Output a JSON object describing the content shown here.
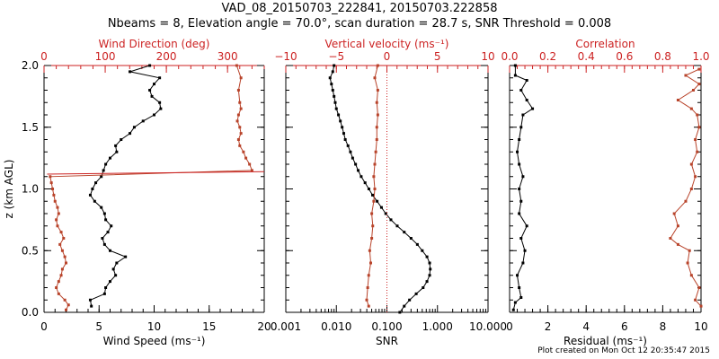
{
  "title_line1": "VAD_08_20150703_222841, 20150703.222858",
  "title_line2": "Nbeams = 8, Elevation angle = 70.0°, scan duration = 28.7 s, SNR Threshold = 0.008",
  "footer": "Plot created on Mon Oct 12 20:35:47 2015",
  "colors": {
    "black": "#000000",
    "red": "#cc2222",
    "brown": "#b8432a"
  },
  "chart_data": [
    {
      "panel": "left",
      "type": "line",
      "ylabel": "z (km AGL)",
      "ylim": [
        0,
        2.0
      ],
      "yticks": [
        0.0,
        0.5,
        1.0,
        1.5,
        2.0
      ],
      "ytick_labels": [
        "0.0",
        "0.5",
        "1.0",
        "1.5",
        "2.0"
      ],
      "bottom_axis": {
        "label": "Wind Speed (ms⁻¹)",
        "lim": [
          0,
          20
        ],
        "ticks": [
          0,
          5,
          10,
          15,
          20
        ],
        "tick_labels": [
          "0",
          "5",
          "10",
          "15",
          "20"
        ]
      },
      "top_axis": {
        "label": "Wind Direction (deg)",
        "lim": [
          0,
          360
        ],
        "ticks": [
          0,
          100,
          200,
          300
        ],
        "tick_labels": [
          "0",
          "100",
          "200",
          "300"
        ]
      },
      "series": [
        {
          "name": "Wind Speed",
          "color": "#000000",
          "axis": "bottom",
          "points": [
            [
              4.3,
              0.05
            ],
            [
              4.2,
              0.1
            ],
            [
              5.5,
              0.15
            ],
            [
              5.6,
              0.2
            ],
            [
              6,
              0.25
            ],
            [
              6.5,
              0.3
            ],
            [
              6.3,
              0.35
            ],
            [
              6.6,
              0.4
            ],
            [
              7.4,
              0.45
            ],
            [
              6,
              0.5
            ],
            [
              5.5,
              0.55
            ],
            [
              5.3,
              0.6
            ],
            [
              5.8,
              0.65
            ],
            [
              6.1,
              0.7
            ],
            [
              5.6,
              0.75
            ],
            [
              5.5,
              0.8
            ],
            [
              5.2,
              0.85
            ],
            [
              4.6,
              0.9
            ],
            [
              4.2,
              0.95
            ],
            [
              4.4,
              1.0
            ],
            [
              4.7,
              1.05
            ],
            [
              5.2,
              1.1
            ],
            [
              5.4,
              1.15
            ],
            [
              5.6,
              1.2
            ],
            [
              6,
              1.25
            ],
            [
              6.6,
              1.3
            ],
            [
              6.5,
              1.35
            ],
            [
              7,
              1.4
            ],
            [
              7.8,
              1.45
            ],
            [
              8.2,
              1.5
            ],
            [
              9,
              1.55
            ],
            [
              10,
              1.6
            ],
            [
              10.6,
              1.65
            ],
            [
              10.5,
              1.7
            ],
            [
              9.8,
              1.75
            ],
            [
              9.6,
              1.8
            ],
            [
              10,
              1.85
            ],
            [
              10.5,
              1.9
            ],
            [
              7.8,
              1.95
            ],
            [
              9.6,
              2.0
            ]
          ]
        },
        {
          "name": "Wind Direction",
          "color": "#b8432a",
          "axis": "top",
          "points": [
            [
              36,
              0.02
            ],
            [
              40,
              0.06
            ],
            [
              34,
              0.1
            ],
            [
              24,
              0.15
            ],
            [
              20,
              0.2
            ],
            [
              24,
              0.25
            ],
            [
              28,
              0.3
            ],
            [
              30,
              0.35
            ],
            [
              36,
              0.4
            ],
            [
              34,
              0.45
            ],
            [
              30,
              0.5
            ],
            [
              26,
              0.55
            ],
            [
              32,
              0.6
            ],
            [
              28,
              0.65
            ],
            [
              22,
              0.7
            ],
            [
              20,
              0.75
            ],
            [
              24,
              0.8
            ],
            [
              22,
              0.85
            ],
            [
              18,
              0.9
            ],
            [
              16,
              0.95
            ],
            [
              14,
              1.0
            ],
            [
              12,
              1.05
            ],
            [
              10,
              1.1
            ],
            [
              340,
              1.15
            ],
            [
              336,
              1.2
            ],
            [
              330,
              1.25
            ],
            [
              326,
              1.3
            ],
            [
              320,
              1.35
            ],
            [
              318,
              1.4
            ],
            [
              322,
              1.45
            ],
            [
              320,
              1.5
            ],
            [
              316,
              1.55
            ],
            [
              318,
              1.6
            ],
            [
              322,
              1.65
            ],
            [
              320,
              1.7
            ],
            [
              318,
              1.8
            ],
            [
              322,
              1.9
            ],
            [
              315,
              2.0
            ]
          ]
        },
        {
          "name": "Direction wrap line",
          "color": "#cc2222",
          "axis": "top",
          "points": [
            [
              5,
              1.12
            ],
            [
              360,
              1.14
            ]
          ]
        }
      ]
    },
    {
      "panel": "middle",
      "type": "line",
      "ylim": [
        0,
        2.0
      ],
      "bottom_axis": {
        "label": "SNR",
        "scale": "log",
        "lim": [
          0.001,
          10
        ],
        "ticks": [
          0.001,
          0.01,
          0.1,
          1,
          10
        ],
        "tick_labels": [
          "0.001",
          "0.010",
          "0.100",
          "1.000",
          "10.000"
        ]
      },
      "top_axis": {
        "label": "Vertical velocity (ms⁻¹)",
        "lim": [
          -10,
          10
        ],
        "ticks": [
          -10,
          -5,
          0,
          5,
          10
        ],
        "tick_labels": [
          "−10",
          "−5",
          "0",
          "5",
          "10"
        ]
      },
      "series": [
        {
          "name": "SNR",
          "color": "#000000",
          "axis": "bottom",
          "points": [
            [
              0.18,
              0.0
            ],
            [
              0.22,
              0.05
            ],
            [
              0.28,
              0.1
            ],
            [
              0.38,
              0.15
            ],
            [
              0.52,
              0.2
            ],
            [
              0.62,
              0.25
            ],
            [
              0.7,
              0.3
            ],
            [
              0.72,
              0.35
            ],
            [
              0.7,
              0.4
            ],
            [
              0.62,
              0.45
            ],
            [
              0.5,
              0.5
            ],
            [
              0.4,
              0.55
            ],
            [
              0.3,
              0.6
            ],
            [
              0.22,
              0.65
            ],
            [
              0.16,
              0.7
            ],
            [
              0.12,
              0.75
            ],
            [
              0.095,
              0.8
            ],
            [
              0.078,
              0.85
            ],
            [
              0.064,
              0.9
            ],
            [
              0.052,
              0.95
            ],
            [
              0.044,
              1.0
            ],
            [
              0.037,
              1.05
            ],
            [
              0.031,
              1.1
            ],
            [
              0.027,
              1.15
            ],
            [
              0.024,
              1.2
            ],
            [
              0.021,
              1.25
            ],
            [
              0.019,
              1.3
            ],
            [
              0.017,
              1.35
            ],
            [
              0.015,
              1.4
            ],
            [
              0.014,
              1.45
            ],
            [
              0.013,
              1.5
            ],
            [
              0.012,
              1.55
            ],
            [
              0.011,
              1.6
            ],
            [
              0.01,
              1.65
            ],
            [
              0.0095,
              1.7
            ],
            [
              0.009,
              1.75
            ],
            [
              0.0085,
              1.8
            ],
            [
              0.008,
              1.85
            ],
            [
              0.0075,
              1.9
            ],
            [
              0.0085,
              1.95
            ],
            [
              0.009,
              2.0
            ]
          ]
        },
        {
          "name": "Vertical velocity",
          "color": "#b8432a",
          "axis": "top",
          "points": [
            [
              -1.8,
              0.05
            ],
            [
              -2,
              0.1
            ],
            [
              -1.9,
              0.2
            ],
            [
              -1.8,
              0.3
            ],
            [
              -1.6,
              0.4
            ],
            [
              -1.7,
              0.5
            ],
            [
              -1.5,
              0.6
            ],
            [
              -1.4,
              0.7
            ],
            [
              -1.5,
              0.8
            ],
            [
              -1.3,
              0.9
            ],
            [
              -1.2,
              1.0
            ],
            [
              -1.3,
              1.1
            ],
            [
              -1.2,
              1.2
            ],
            [
              -1.1,
              1.3
            ],
            [
              -1.0,
              1.4
            ],
            [
              -1.0,
              1.5
            ],
            [
              -0.9,
              1.6
            ],
            [
              -1.0,
              1.7
            ],
            [
              -0.9,
              1.8
            ],
            [
              -1.2,
              1.9
            ],
            [
              -0.9,
              2.0
            ]
          ]
        },
        {
          "name": "Zero velocity",
          "color": "#cc2222",
          "axis": "top",
          "style": "dotted",
          "points": [
            [
              0,
              0
            ],
            [
              0,
              2.0
            ]
          ]
        }
      ]
    },
    {
      "panel": "right",
      "type": "line",
      "ylim": [
        0,
        2.0
      ],
      "bottom_axis": {
        "label": "Residual (ms⁻¹)",
        "lim": [
          0,
          10
        ],
        "ticks": [
          0,
          2,
          4,
          6,
          8,
          10
        ],
        "tick_labels": [
          "0",
          "2",
          "4",
          "6",
          "8",
          "10"
        ]
      },
      "top_axis": {
        "label": "Correlation",
        "lim": [
          0,
          1.0
        ],
        "ticks": [
          0.0,
          0.2,
          0.4,
          0.6,
          0.8,
          1.0
        ],
        "tick_labels": [
          "0.0",
          "0.2",
          "0.4",
          "0.6",
          "0.8",
          "1.0"
        ]
      },
      "series": [
        {
          "name": "Residual",
          "color": "#000000",
          "axis": "bottom",
          "points": [
            [
              0.2,
              0.02
            ],
            [
              0.3,
              0.08
            ],
            [
              0.6,
              0.12
            ],
            [
              0.5,
              0.2
            ],
            [
              0.4,
              0.3
            ],
            [
              0.7,
              0.4
            ],
            [
              0.8,
              0.5
            ],
            [
              0.6,
              0.6
            ],
            [
              0.9,
              0.7
            ],
            [
              0.5,
              0.8
            ],
            [
              0.6,
              0.9
            ],
            [
              0.5,
              1.0
            ],
            [
              0.7,
              1.1
            ],
            [
              0.5,
              1.2
            ],
            [
              0.4,
              1.3
            ],
            [
              0.5,
              1.4
            ],
            [
              0.6,
              1.5
            ],
            [
              0.7,
              1.6
            ],
            [
              1.2,
              1.65
            ],
            [
              0.9,
              1.72
            ],
            [
              0.6,
              1.8
            ],
            [
              0.9,
              1.88
            ],
            [
              0.3,
              1.92
            ],
            [
              0.3,
              2.0
            ]
          ]
        },
        {
          "name": "Correlation",
          "color": "#b8432a",
          "axis": "top",
          "points": [
            [
              1.0,
              0.05
            ],
            [
              0.97,
              0.1
            ],
            [
              0.99,
              0.2
            ],
            [
              0.95,
              0.3
            ],
            [
              0.93,
              0.4
            ],
            [
              0.94,
              0.5
            ],
            [
              0.88,
              0.55
            ],
            [
              0.84,
              0.6
            ],
            [
              0.88,
              0.7
            ],
            [
              0.86,
              0.8
            ],
            [
              0.92,
              0.9
            ],
            [
              0.95,
              1.0
            ],
            [
              0.97,
              1.1
            ],
            [
              0.95,
              1.2
            ],
            [
              0.98,
              1.3
            ],
            [
              0.97,
              1.4
            ],
            [
              0.99,
              1.5
            ],
            [
              0.98,
              1.6
            ],
            [
              0.95,
              1.65
            ],
            [
              0.88,
              1.72
            ],
            [
              0.96,
              1.8
            ],
            [
              0.99,
              1.85
            ],
            [
              0.92,
              1.92
            ],
            [
              0.99,
              1.97
            ]
          ]
        }
      ]
    }
  ]
}
